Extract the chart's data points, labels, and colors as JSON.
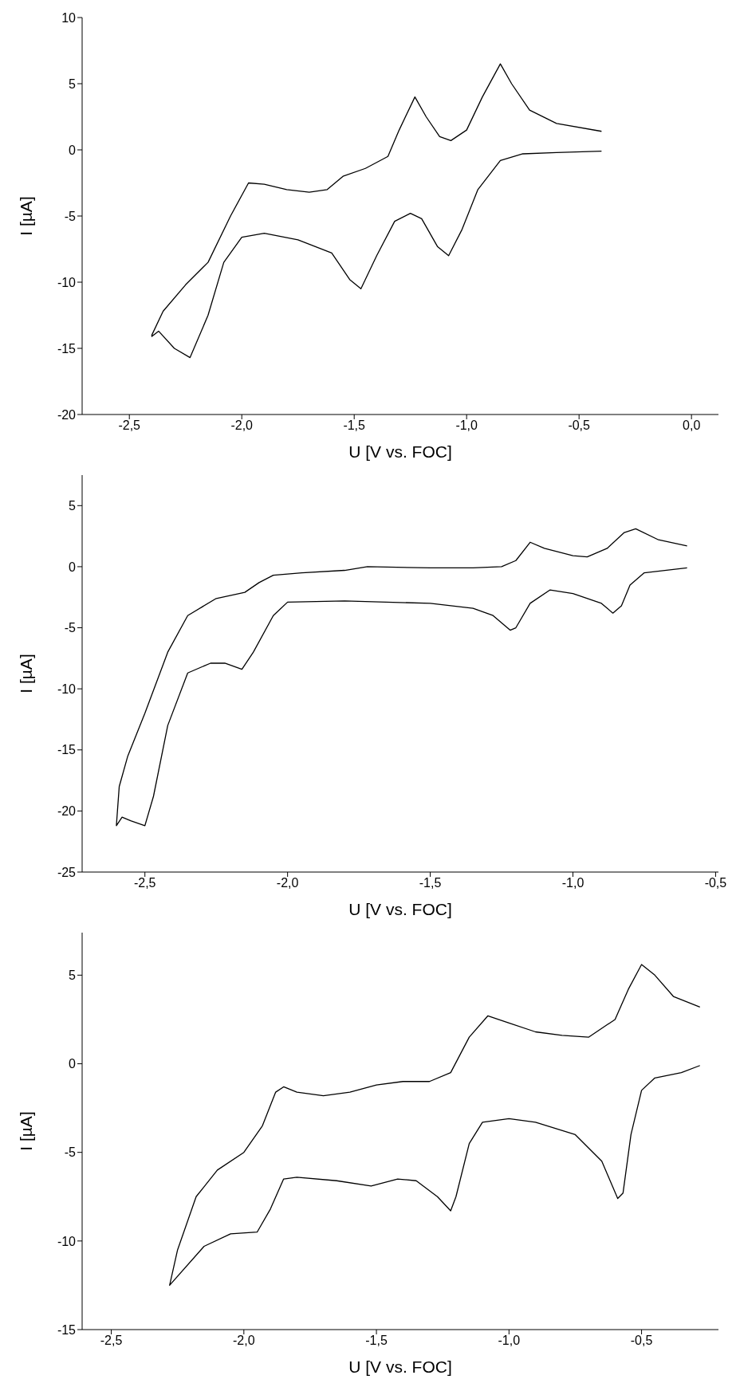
{
  "chart_data": [
    {
      "type": "line",
      "xlabel": "U [V vs. FOC]",
      "ylabel": "I [µA]",
      "xlim": [
        -2.71,
        0.12
      ],
      "ylim": [
        -20,
        10
      ],
      "xticks": [
        {
          "value": -2.5,
          "label": "-2,5"
        },
        {
          "value": -2.0,
          "label": "-2,0"
        },
        {
          "value": -1.5,
          "label": "-1,5"
        },
        {
          "value": -1.0,
          "label": "-1,0"
        },
        {
          "value": -0.5,
          "label": "-0,5"
        },
        {
          "value": 0.0,
          "label": "0,0"
        }
      ],
      "yticks": [
        -20,
        -15,
        -10,
        -5,
        0,
        5,
        10
      ],
      "series": [
        {
          "color": "#000000",
          "x": [
            -0.4,
            -0.6,
            -0.75,
            -0.85,
            -0.95,
            -1.02,
            -1.08,
            -1.13,
            -1.2,
            -1.25,
            -1.32,
            -1.4,
            -1.47,
            -1.52,
            -1.6,
            -1.75,
            -1.9,
            -2.0,
            -2.08,
            -2.15,
            -2.23,
            -2.3,
            -2.37,
            -2.4,
            -2.4,
            -2.35,
            -2.25,
            -2.15,
            -2.05,
            -1.97,
            -1.9,
            -1.8,
            -1.7,
            -1.62,
            -1.55,
            -1.45,
            -1.35,
            -1.3,
            -1.23,
            -1.18,
            -1.12,
            -1.07,
            -1.0,
            -0.93,
            -0.85,
            -0.8,
            -0.72,
            -0.6,
            -0.4
          ],
          "values": [
            -0.1,
            -0.2,
            -0.3,
            -0.8,
            -3,
            -6,
            -8,
            -7.3,
            -5.2,
            -4.8,
            -5.4,
            -8,
            -10.5,
            -9.8,
            -7.8,
            -6.8,
            -6.3,
            -6.6,
            -8.5,
            -12.5,
            -15.7,
            -15,
            -13.7,
            -14.1,
            -14,
            -12.2,
            -10.2,
            -8.5,
            -5,
            -2.5,
            -2.6,
            -3,
            -3.2,
            -3,
            -2,
            -1.4,
            -0.5,
            1.5,
            4,
            2.5,
            1,
            0.7,
            1.5,
            4,
            6.5,
            5,
            3,
            2,
            1.4
          ]
        }
      ]
    },
    {
      "type": "line",
      "xlabel": "U [V vs. FOC]",
      "ylabel": "I [µA]",
      "xlim": [
        -2.72,
        -0.49
      ],
      "ylim": [
        -25,
        7.5
      ],
      "xticks": [
        {
          "value": -2.5,
          "label": "-2,5"
        },
        {
          "value": -2.0,
          "label": "-2,0"
        },
        {
          "value": -1.5,
          "label": "-1,5"
        },
        {
          "value": -1.0,
          "label": "-1,0"
        },
        {
          "value": -0.5,
          "label": "-0,5"
        }
      ],
      "yticks": [
        -25,
        -20,
        -15,
        -10,
        -5,
        0,
        5
      ],
      "series": [
        {
          "color": "#000000",
          "x": [
            -0.6,
            -0.75,
            -0.8,
            -0.83,
            -0.86,
            -0.9,
            -1.0,
            -1.08,
            -1.15,
            -1.2,
            -1.22,
            -1.28,
            -1.35,
            -1.5,
            -1.8,
            -2.0,
            -2.05,
            -2.12,
            -2.16,
            -2.22,
            -2.27,
            -2.35,
            -2.42,
            -2.47,
            -2.5,
            -2.55,
            -2.58,
            -2.6,
            -2.59,
            -2.56,
            -2.5,
            -2.42,
            -2.35,
            -2.25,
            -2.15,
            -2.1,
            -2.05,
            -1.95,
            -1.8,
            -1.72,
            -1.5,
            -1.35,
            -1.25,
            -1.2,
            -1.15,
            -1.1,
            -1.0,
            -0.95,
            -0.88,
            -0.82,
            -0.78,
            -0.7,
            -0.6
          ],
          "values": [
            -0.1,
            -0.5,
            -1.5,
            -3.2,
            -3.8,
            -3,
            -2.2,
            -1.9,
            -3,
            -5,
            -5.2,
            -4,
            -3.4,
            -3,
            -2.8,
            -2.9,
            -4,
            -7,
            -8.4,
            -7.9,
            -7.9,
            -8.7,
            -13,
            -18.8,
            -21.2,
            -20.8,
            -20.5,
            -21.2,
            -18,
            -15.5,
            -12,
            -7,
            -4,
            -2.6,
            -2.1,
            -1.3,
            -0.7,
            -0.5,
            -0.3,
            0,
            -0.1,
            -0.1,
            0,
            0.5,
            2,
            1.5,
            0.9,
            0.8,
            1.5,
            2.8,
            3.1,
            2.2,
            1.7
          ]
        }
      ]
    },
    {
      "type": "line",
      "xlabel": "U [V vs. FOC]",
      "ylabel": "I [µA]",
      "xlim": [
        -2.61,
        -0.21
      ],
      "ylim": [
        -15,
        7.4
      ],
      "xticks": [
        {
          "value": -2.5,
          "label": "-2,5"
        },
        {
          "value": -2.0,
          "label": "-2,0"
        },
        {
          "value": -1.5,
          "label": "-1,5"
        },
        {
          "value": -1.0,
          "label": "-1,0"
        },
        {
          "value": -0.5,
          "label": "-0,5"
        }
      ],
      "yticks": [
        -15,
        -10,
        -5,
        0,
        5
      ],
      "series": [
        {
          "color": "#000000",
          "x": [
            -0.28,
            -0.35,
            -0.45,
            -0.5,
            -0.54,
            -0.57,
            -0.59,
            -0.65,
            -0.75,
            -0.9,
            -1.0,
            -1.1,
            -1.15,
            -1.2,
            -1.22,
            -1.27,
            -1.35,
            -1.42,
            -1.52,
            -1.65,
            -1.8,
            -1.85,
            -1.9,
            -1.95,
            -2.05,
            -2.15,
            -2.28,
            -2.25,
            -2.18,
            -2.1,
            -2.0,
            -1.93,
            -1.88,
            -1.85,
            -1.8,
            -1.7,
            -1.6,
            -1.5,
            -1.4,
            -1.3,
            -1.22,
            -1.15,
            -1.08,
            -1.0,
            -0.9,
            -0.8,
            -0.7,
            -0.6,
            -0.55,
            -0.5,
            -0.45,
            -0.38,
            -0.28
          ],
          "values": [
            -0.1,
            -0.5,
            -0.8,
            -1.5,
            -4,
            -7.3,
            -7.6,
            -5.5,
            -4,
            -3.3,
            -3.1,
            -3.3,
            -4.5,
            -7.5,
            -8.3,
            -7.5,
            -6.6,
            -6.5,
            -6.9,
            -6.6,
            -6.4,
            -6.5,
            -8.2,
            -9.5,
            -9.6,
            -10.3,
            -12.5,
            -10.5,
            -7.5,
            -6,
            -5,
            -3.5,
            -1.6,
            -1.3,
            -1.6,
            -1.8,
            -1.6,
            -1.2,
            -1,
            -1,
            -0.5,
            1.5,
            2.7,
            2.3,
            1.8,
            1.6,
            1.5,
            2.5,
            4.2,
            5.6,
            5,
            3.8,
            3.2
          ]
        }
      ]
    }
  ]
}
